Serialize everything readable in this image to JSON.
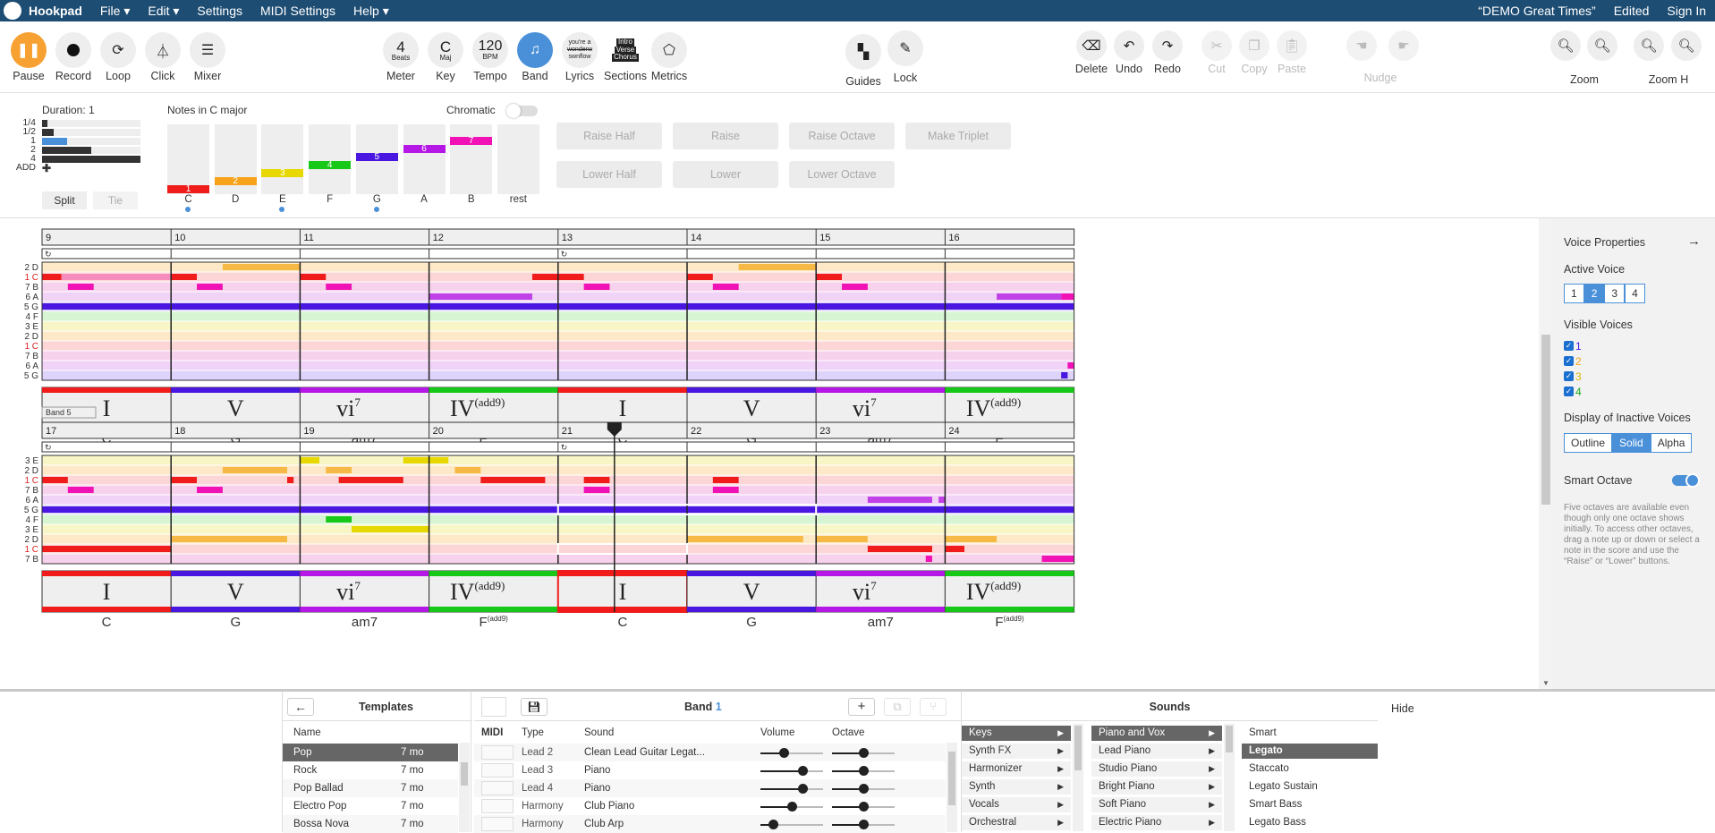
{
  "menubar": {
    "app": "Hookpad",
    "menus": [
      "File",
      "Edit",
      "Settings",
      "MIDI Settings",
      "Help"
    ],
    "song_title": "“DEMO Great Times”",
    "status": "Edited",
    "signin": "Sign In"
  },
  "toolbar": {
    "pause": "Pause",
    "record": "Record",
    "loop": "Loop",
    "click": "Click",
    "mixer": "Mixer",
    "meter_value": "4",
    "meter_sub": "Beats",
    "meter": "Meter",
    "key_value": "C",
    "key_sub": "Maj",
    "key": "Key",
    "tempo_value": "120",
    "tempo_sub": "BPM",
    "tempo": "Tempo",
    "band": "Band",
    "lyrics": "Lyrics",
    "lyrics_art": [
      "you're a",
      "wonderw",
      "swnflow"
    ],
    "sections": "Sections",
    "sections_art": [
      "Intro",
      "Verse",
      "Chorus"
    ],
    "metrics": "Metrics",
    "guides": "Guides",
    "lock": "Lock",
    "delete": "Delete",
    "undo": "Undo",
    "redo": "Redo",
    "cut": "Cut",
    "copy": "Copy",
    "paste": "Paste",
    "nudge": "Nudge",
    "zoom": "Zoom",
    "zoomh": "Zoom H"
  },
  "notepanel": {
    "duration_label": "Duration: 1",
    "durations": [
      "1/4",
      "1/2",
      "1",
      "2",
      "4",
      "ADD"
    ],
    "duration_values": [
      0.05,
      0.12,
      0.25,
      0.5,
      1.0
    ],
    "split": "Split",
    "tie": "Tie",
    "notes_label": "Notes in C major",
    "chromatic": "Chromatic",
    "notes": [
      {
        "num": "1",
        "name": "C",
        "color": "#f01c1c",
        "dot": true
      },
      {
        "num": "2",
        "name": "D",
        "color": "#f6a21a",
        "dot": false
      },
      {
        "num": "3",
        "name": "E",
        "color": "#e6d800",
        "dot": true
      },
      {
        "num": "4",
        "name": "F",
        "color": "#18c818",
        "dot": false
      },
      {
        "num": "5",
        "name": "G",
        "color": "#4a17e0",
        "dot": true
      },
      {
        "num": "6",
        "name": "A",
        "color": "#b517e6",
        "dot": false
      },
      {
        "num": "7",
        "name": "B",
        "color": "#f012b4",
        "dot": false
      }
    ],
    "rest": "rest",
    "buttons": [
      "Raise Half",
      "Raise",
      "Raise Octave",
      "Make Triplet",
      "Lower Half",
      "Lower",
      "Lower Octave"
    ]
  },
  "score": {
    "band_label": "Band 5",
    "measures_top": [
      "9",
      "10",
      "11",
      "12",
      "13",
      "14",
      "15",
      "16"
    ],
    "measures_bottom": [
      "17",
      "18",
      "19",
      "20",
      "21",
      "22",
      "23",
      "24"
    ],
    "rows_top": [
      "2 D",
      "1 C",
      "7 B",
      "6 A",
      "5 G",
      "4 F",
      "3 E",
      "2 D",
      "1 C",
      "7 B",
      "6 A",
      "5 G"
    ],
    "rows_bottom": [
      "3 E",
      "2 D",
      "1 C",
      "7 B",
      "6 A",
      "5 G",
      "4 F",
      "3 E",
      "2 D",
      "1 C",
      "7 B"
    ],
    "chords": [
      {
        "roman": "I",
        "sup": "",
        "name": "C",
        "name_sup": "",
        "color": "#f01c1c"
      },
      {
        "roman": "V",
        "sup": "",
        "name": "G",
        "name_sup": "",
        "color": "#4a17e0"
      },
      {
        "roman": "vi",
        "sup": "7",
        "name": "am7",
        "name_sup": "",
        "color": "#b517e6"
      },
      {
        "roman": "IV",
        "sup": "(add9)",
        "name": "F",
        "name_sup": "(add9)",
        "color": "#18c818"
      },
      {
        "roman": "I",
        "sup": "",
        "name": "C",
        "name_sup": "",
        "color": "#f01c1c"
      },
      {
        "roman": "V",
        "sup": "",
        "name": "G",
        "name_sup": "",
        "color": "#4a17e0"
      },
      {
        "roman": "vi",
        "sup": "7",
        "name": "am7",
        "name_sup": "",
        "color": "#b517e6"
      },
      {
        "roman": "IV",
        "sup": "(add9)",
        "name": "F",
        "name_sup": "(add9)",
        "color": "#18c818"
      }
    ]
  },
  "side": {
    "title": "Voice Properties",
    "active_voice": "Active Voice",
    "voices": [
      "1",
      "2",
      "3",
      "4"
    ],
    "active": "2",
    "visible_voices": "Visible Voices",
    "visible": [
      {
        "label": "1",
        "color": "#4a17e0"
      },
      {
        "label": "2",
        "color": "#f6a21a"
      },
      {
        "label": "3",
        "color": "#d4b400"
      },
      {
        "label": "4",
        "color": "#18a818"
      }
    ],
    "display_inactive": "Display of Inactive Voices",
    "display_opts": [
      "Outline",
      "Solid",
      "Alpha"
    ],
    "display_sel": "Solid",
    "smart_octave": "Smart Octave",
    "help": "Five octaves are available even though only one octave shows initially. To access other octaves, drag a note up or down or select a note in the score and use the “Raise” or “Lower” buttons."
  },
  "bottom": {
    "templates_title": "Templates",
    "name_col": "Name",
    "templates": [
      {
        "name": "Pop",
        "age": "7 mo",
        "selected": true
      },
      {
        "name": "Rock",
        "age": "7 mo",
        "selected": false
      },
      {
        "name": "Pop Ballad",
        "age": "7 mo",
        "selected": false
      },
      {
        "name": "Electro Pop",
        "age": "7 mo",
        "selected": false
      },
      {
        "name": "Bossa Nova",
        "age": "7 mo",
        "selected": false
      }
    ],
    "band_title": "Band",
    "band_num": "1",
    "cols": [
      "MIDI",
      "Type",
      "Sound",
      "Volume",
      "Octave"
    ],
    "tracks": [
      {
        "type": "Lead 2",
        "sound": "Clean Lead Guitar Legat...",
        "volume": 0.37,
        "octave": 0.5
      },
      {
        "type": "Lead 3",
        "sound": "Piano",
        "volume": 0.67,
        "octave": 0.5
      },
      {
        "type": "Lead 4",
        "sound": "Piano",
        "volume": 0.67,
        "octave": 0.5
      },
      {
        "type": "Harmony",
        "sound": "Club Piano",
        "volume": 0.5,
        "octave": 0.5
      },
      {
        "type": "Harmony",
        "sound": "Club Arp",
        "volume": 0.2,
        "octave": 0.5
      }
    ],
    "sounds_title": "Sounds",
    "categories": [
      "Keys",
      "Synth FX",
      "Harmonizer",
      "Synth",
      "Vocals",
      "Orchestral"
    ],
    "category_sel": "Keys",
    "subcategories": [
      "Piano and Vox",
      "Lead Piano",
      "Studio Piano",
      "Bright Piano",
      "Soft Piano",
      "Electric Piano"
    ],
    "subcategory_sel": "Piano and Vox",
    "presets": [
      "Smart",
      "Legato",
      "Staccato",
      "Legato Sustain",
      "Smart Bass",
      "Legato Bass"
    ],
    "preset_sel": "Legato",
    "hide": "Hide"
  }
}
